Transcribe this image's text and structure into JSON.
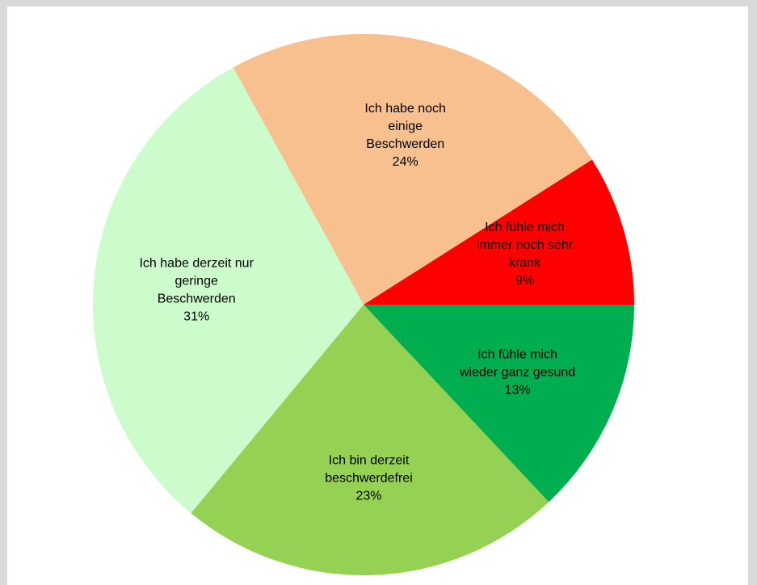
{
  "chart_data": {
    "type": "pie",
    "title": "",
    "start_angle_deg": 0,
    "direction": "counterclockwise",
    "slices": [
      {
        "label": "Ich fühle mich immer noch sehr krank",
        "lines": [
          "Ich fühle mich",
          "immer noch sehr",
          "krank"
        ],
        "value": 9,
        "value_label": "9%",
        "color": "#ff0000",
        "label_color": "#cc0000"
      },
      {
        "label": "Ich habe noch einige Beschwerden",
        "lines": [
          "Ich habe noch",
          "einige",
          "Beschwerden"
        ],
        "value": 24,
        "value_label": "24%",
        "color": "#f8c08e",
        "label_color": "#000000"
      },
      {
        "label": "Ich habe derzeit nur geringe Beschwerden",
        "lines": [
          "Ich habe derzeit nur",
          "geringe",
          "Beschwerden"
        ],
        "value": 31,
        "value_label": "31%",
        "color": "#ccfccc",
        "label_color": "#000000"
      },
      {
        "label": "Ich bin derzeit beschwerdefrei",
        "lines": [
          "Ich bin derzeit",
          "beschwerdefrei"
        ],
        "value": 23,
        "value_label": "23%",
        "color": "#95d254",
        "label_color": "#000000"
      },
      {
        "label": "Ich fühle mich wieder ganz gesund",
        "lines": [
          "Ich fühle mich",
          "wieder ganz gesund"
        ],
        "value": 13,
        "value_label": "13%",
        "color": "#00ad4f",
        "label_color": "#000000"
      }
    ]
  }
}
